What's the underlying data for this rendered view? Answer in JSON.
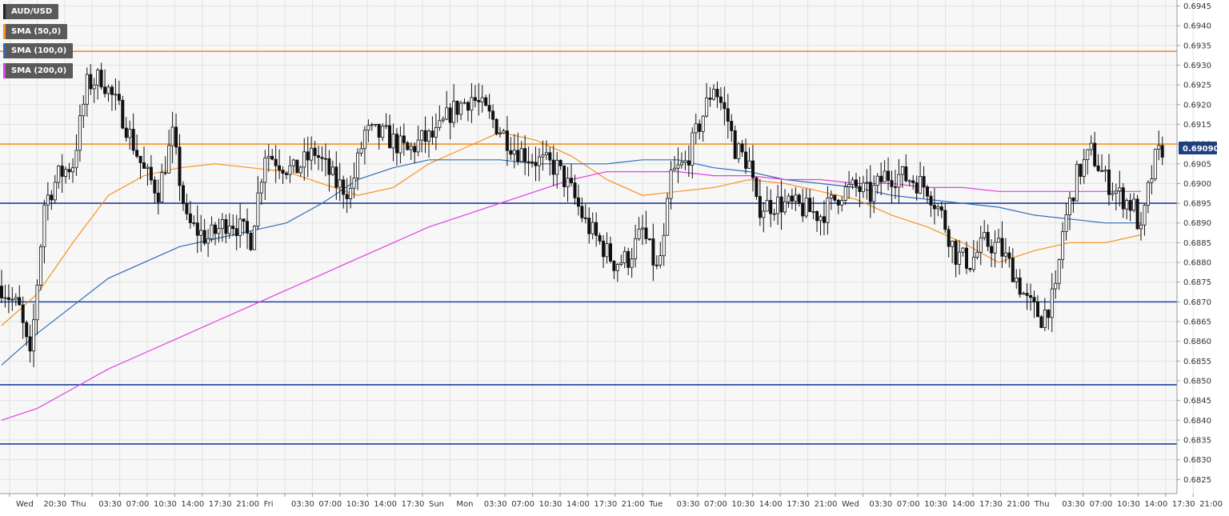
{
  "chart_data": {
    "type": "candlestick",
    "symbol": "AUD/USD",
    "last_price": "0.69090",
    "ylim": [
      0.6821,
      0.6949
    ],
    "y_ticks": [
      "0.6825",
      "0.6830",
      "0.6835",
      "0.6840",
      "0.6845",
      "0.6850",
      "0.6855",
      "0.6860",
      "0.6865",
      "0.6870",
      "0.6875",
      "0.6880",
      "0.6885",
      "0.6890",
      "0.6895",
      "0.6900",
      "0.6905",
      "0.6910",
      "0.6915",
      "0.6920",
      "0.6925",
      "0.6930",
      "0.6935",
      "0.6940",
      "0.6945"
    ],
    "x_ticks": [
      "Wed",
      "20:30",
      "Thu",
      "03:30",
      "07:00",
      "10:30",
      "14:00",
      "17:30",
      "21:00",
      "Fri",
      "03:30",
      "07:00",
      "10:30",
      "14:00",
      "17:30",
      "Sun",
      "Mon",
      "03:30",
      "07:00",
      "10:30",
      "14:00",
      "17:30",
      "21:00",
      "Tue",
      "03:30",
      "07:00",
      "10:30",
      "14:00",
      "17:30",
      "21:00",
      "Wed",
      "03:30",
      "07:00",
      "10:30",
      "14:00",
      "17:30",
      "21:00",
      "Thu",
      "03:30",
      "07:00",
      "10:30",
      "14:00",
      "17:30",
      "21:00"
    ],
    "legend": [
      {
        "label": "AUD/USD",
        "color": "#222222"
      },
      {
        "label": "SMA (50,0)",
        "color": "#f7931e"
      },
      {
        "label": "SMA (100,0)",
        "color": "#2f6db5"
      },
      {
        "label": "SMA (200,0)",
        "color": "#e040e0"
      }
    ],
    "horizontal_levels": [
      {
        "value": 0.69335,
        "color": "#f7931e"
      },
      {
        "value": 0.691,
        "color": "#f7931e"
      },
      {
        "value": 0.6895,
        "color": "#1f3f9f"
      },
      {
        "value": 0.687,
        "color": "#1f3f9f"
      },
      {
        "value": 0.6849,
        "color": "#1f3f9f"
      },
      {
        "value": 0.6834,
        "color": "#1f3f9f"
      }
    ],
    "series": [
      {
        "name": "SMA (50,0)",
        "color": "#f7931e",
        "x": [
          0,
          10,
          20,
          30,
          40,
          50,
          60,
          70,
          80,
          90,
          100,
          110,
          120,
          130,
          140,
          150,
          160,
          170,
          180,
          190,
          200,
          210,
          220,
          230,
          240,
          250,
          260,
          270,
          280,
          290,
          300,
          310,
          320
        ],
        "values": [
          0.6864,
          0.6872,
          0.6885,
          0.6897,
          0.6902,
          0.6904,
          0.6905,
          0.6904,
          0.6903,
          0.69,
          0.6897,
          0.6899,
          0.6905,
          0.6909,
          0.6913,
          0.6911,
          0.6907,
          0.6901,
          0.6897,
          0.6898,
          0.6899,
          0.6901,
          0.69,
          0.6898,
          0.6896,
          0.6892,
          0.6889,
          0.6885,
          0.688,
          0.6883,
          0.6885,
          0.6885,
          0.6887
        ]
      },
      {
        "name": "SMA (100,0)",
        "color": "#2f6db5",
        "x": [
          0,
          10,
          20,
          30,
          40,
          50,
          60,
          70,
          80,
          90,
          100,
          110,
          120,
          130,
          140,
          150,
          160,
          170,
          180,
          190,
          200,
          210,
          220,
          230,
          240,
          250,
          260,
          270,
          280,
          290,
          300,
          310,
          320
        ],
        "values": [
          0.6854,
          0.6862,
          0.6869,
          0.6876,
          0.688,
          0.6884,
          0.6886,
          0.6888,
          0.689,
          0.6895,
          0.6901,
          0.6904,
          0.6906,
          0.6906,
          0.6906,
          0.6905,
          0.6905,
          0.6905,
          0.6906,
          0.6906,
          0.6904,
          0.6903,
          0.6901,
          0.69,
          0.6899,
          0.6897,
          0.6896,
          0.6895,
          0.6894,
          0.6892,
          0.6891,
          0.689,
          0.689
        ]
      },
      {
        "name": "SMA (200,0)",
        "color": "#e040e0",
        "x": [
          0,
          10,
          20,
          30,
          40,
          50,
          60,
          70,
          80,
          90,
          100,
          110,
          120,
          130,
          140,
          150,
          160,
          170,
          180,
          190,
          200,
          210,
          220,
          230,
          240,
          250,
          260,
          270,
          280,
          290,
          300,
          310,
          320
        ],
        "values": [
          0.684,
          0.6843,
          0.6848,
          0.6853,
          0.6857,
          0.6861,
          0.6865,
          0.6869,
          0.6873,
          0.6877,
          0.6881,
          0.6885,
          0.6889,
          0.6892,
          0.6895,
          0.6898,
          0.6901,
          0.6903,
          0.6903,
          0.6903,
          0.6902,
          0.6902,
          0.6901,
          0.6901,
          0.69,
          0.69,
          0.6899,
          0.6899,
          0.6898,
          0.6898,
          0.6898,
          0.6898,
          0.6898
        ]
      }
    ]
  }
}
